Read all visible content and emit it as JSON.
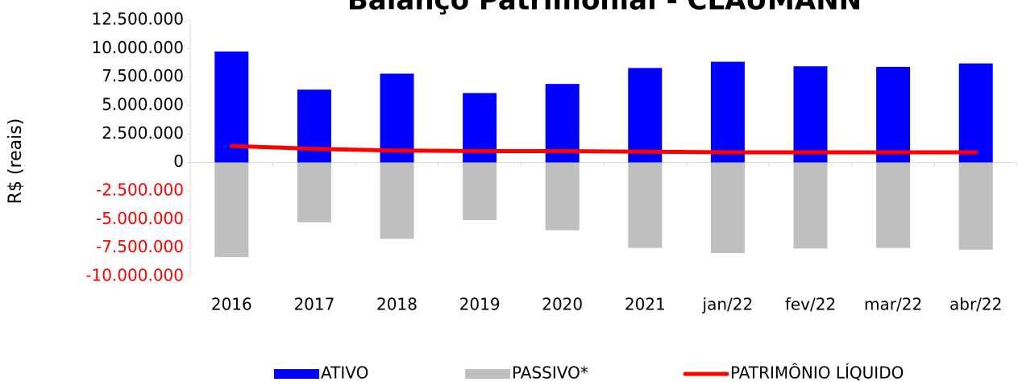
{
  "chart_data": {
    "type": "bar",
    "title": "Balanço Patrimonial - CLAUMANN",
    "y_label": "R$ (reais)",
    "categories": [
      "2016",
      "2017",
      "2018",
      "2019",
      "2020",
      "2021",
      "jan/22",
      "fev/22",
      "mar/22",
      "abr/22"
    ],
    "series": [
      {
        "name": "ATIVO",
        "type": "bar",
        "color": "#0000ff",
        "values": [
          9750000,
          6400000,
          7800000,
          6100000,
          6900000,
          8300000,
          8850000,
          8450000,
          8400000,
          8700000
        ]
      },
      {
        "name": "PASSIVO*",
        "type": "bar",
        "color": "#bfbfbf",
        "values": [
          -8300000,
          -5250000,
          -6700000,
          -5050000,
          -5950000,
          -7500000,
          -7950000,
          -7550000,
          -7500000,
          -7650000
        ]
      },
      {
        "name": "PATRIMÔNIO LÍQUIDO",
        "type": "line",
        "color": "#ff0000",
        "values": [
          1450000,
          1200000,
          1050000,
          1000000,
          1000000,
          950000,
          900000,
          900000,
          900000,
          900000
        ]
      }
    ],
    "ylim": [
      -10000000,
      12500000
    ],
    "yticks": [
      {
        "value": -10000000,
        "label": "-10.000.000"
      },
      {
        "value": -7500000,
        "label": "-7.500.000"
      },
      {
        "value": -5000000,
        "label": "-5.000.000"
      },
      {
        "value": -2500000,
        "label": "-2.500.000"
      },
      0,
      {
        "value": 2500000,
        "label": "2.500.000"
      },
      {
        "value": 5000000,
        "label": "5.000.000"
      },
      {
        "value": 7500000,
        "label": "7.500.000"
      },
      {
        "value": 10000000,
        "label": "10.000.000"
      },
      {
        "value": 12500000,
        "label": "12.500.000"
      }
    ],
    "negative_tick_color": "#ff0000",
    "legend": "bottom"
  }
}
